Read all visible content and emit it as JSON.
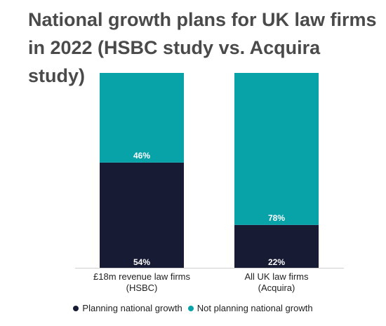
{
  "chart_data": {
    "type": "bar",
    "stacked": true,
    "percent": true,
    "title": "National growth plans for UK law firms in 2022 (HSBC study vs. Acquira study)",
    "categories": [
      "£18m revenue law firms (HSBC)",
      "All UK law firms (Acquira)"
    ],
    "series": [
      {
        "name": "Planning national growth",
        "values": [
          54,
          22
        ],
        "labels": [
          "54%",
          "22%"
        ],
        "color": "#171b34"
      },
      {
        "name": "Not planning national growth",
        "values": [
          46,
          78
        ],
        "labels": [
          "46%",
          "78%"
        ],
        "color": "#08a2a9"
      }
    ],
    "ylim": [
      0,
      100
    ],
    "grid": false,
    "legend": "bottom"
  }
}
